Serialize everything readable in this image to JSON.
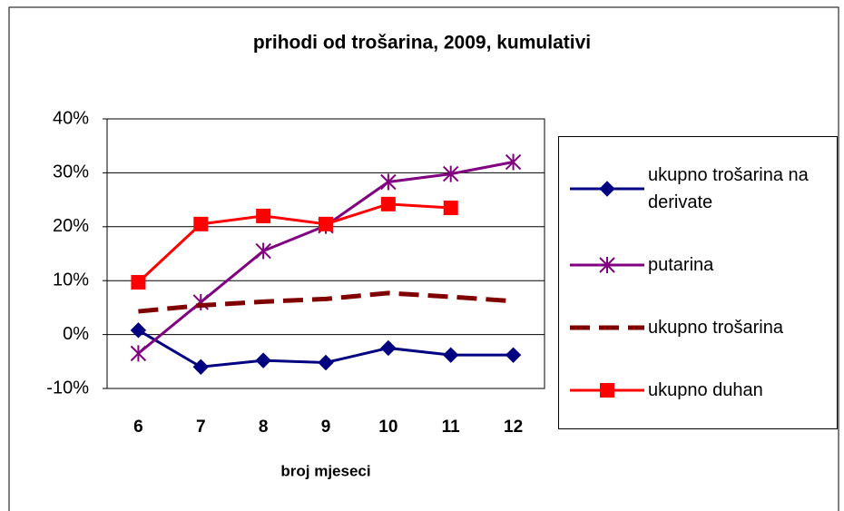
{
  "chart_data": {
    "type": "line",
    "title": "prihodi od trošarina, 2009, kumulativi",
    "x_label": "broj mjeseci",
    "categories": [
      "6",
      "7",
      "8",
      "9",
      "10",
      "11",
      "12"
    ],
    "series": [
      {
        "name": "ukupno trošarina na derivate",
        "color": "#000080",
        "marker": "diamond",
        "dashed": false,
        "values": [
          0.8,
          -6,
          -4.8,
          -5.2,
          -2.5,
          -3.8,
          -3.8
        ]
      },
      {
        "name": "putarina",
        "color": "#800080",
        "marker": "star",
        "dashed": false,
        "values": [
          -3.5,
          6,
          15.5,
          20.2,
          28.3,
          29.8,
          32
        ]
      },
      {
        "name": "ukupno trošarina",
        "color": "#800000",
        "marker": "none",
        "dashed": true,
        "values": [
          4.3,
          5.4,
          6.1,
          6.6,
          7.7,
          7,
          6.2
        ]
      },
      {
        "name": "ukupno duhan",
        "color": "#ff0000",
        "marker": "square",
        "dashed": false,
        "values": [
          9.7,
          20.5,
          22,
          20.5,
          24.2,
          23.5,
          null
        ]
      }
    ],
    "ylim": [
      -10,
      40
    ],
    "yticks": [
      {
        "value": -10,
        "label": "-10%"
      },
      {
        "value": 0,
        "label": "0%"
      },
      {
        "value": 10,
        "label": "10%"
      },
      {
        "value": 20,
        "label": "20%"
      },
      {
        "value": 30,
        "label": "30%"
      },
      {
        "value": 40,
        "label": "40%"
      }
    ],
    "grid": true
  }
}
